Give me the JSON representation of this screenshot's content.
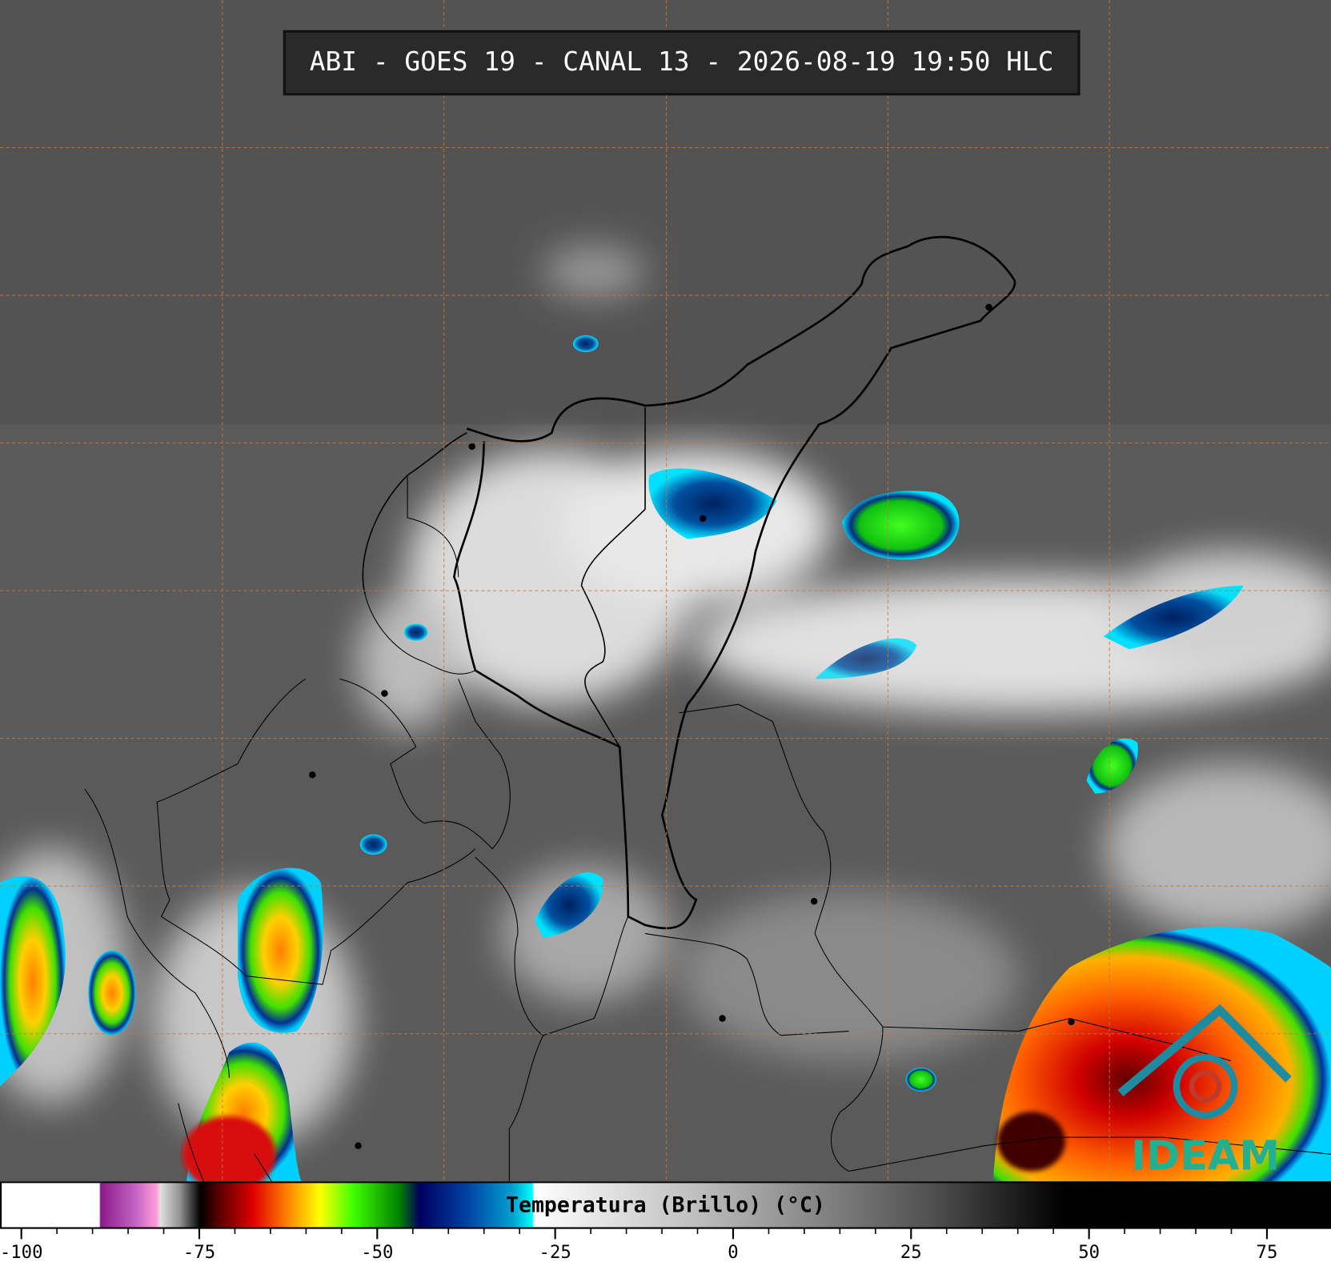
{
  "header": {
    "title": "ABI - GOES 19 - CANAL 13 - 2026-08-19 19:50 HLC"
  },
  "colorbar": {
    "label": "Temperatura (Brillo) (°C)",
    "range": [
      -103,
      84
    ],
    "ticks": [
      -100,
      -75,
      -50,
      -25,
      0,
      25,
      50,
      75
    ]
  },
  "logo": {
    "text": "IDEAM"
  }
}
